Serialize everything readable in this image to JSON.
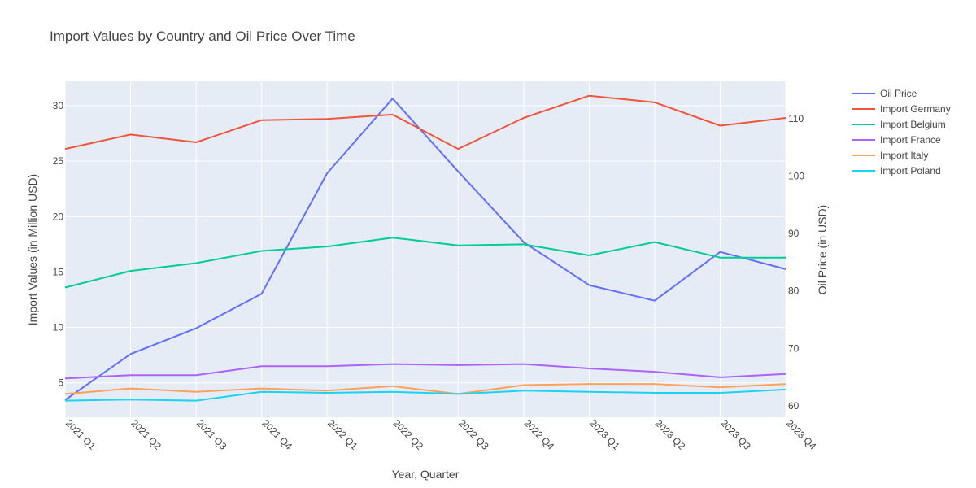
{
  "chart_data": {
    "type": "line",
    "title": "Import Values by Country and Oil Price Over Time",
    "xlabel": "Year, Quarter",
    "ylabel": "Import Values (in Million USD)",
    "y2label": "Oil Price (in USD)",
    "categories": [
      "2021 Q1",
      "2021 Q2",
      "2021 Q3",
      "2021 Q4",
      "2022 Q1",
      "2022 Q2",
      "2022 Q3",
      "2022 Q4",
      "2023 Q1",
      "2023 Q2",
      "2023 Q3",
      "2023 Q4"
    ],
    "ylim": [
      1.9,
      32.2
    ],
    "y2lim": [
      58.0,
      116.5
    ],
    "yticks": [
      5,
      10,
      15,
      20,
      25,
      30
    ],
    "y2ticks": [
      60,
      70,
      80,
      90,
      100,
      110
    ],
    "grid": true,
    "legend_position": "top-right",
    "background_color": "#e5ecf6",
    "series": [
      {
        "name": "Oil Price",
        "axis": "y2",
        "color": "#636efa",
        "values": [
          61.0,
          69.0,
          73.5,
          79.5,
          100.5,
          113.5,
          100.8,
          88.5,
          81.0,
          78.3,
          86.8,
          83.8
        ]
      },
      {
        "name": "Import Germany",
        "axis": "y",
        "color": "#ef553b",
        "values": [
          26.1,
          27.4,
          26.7,
          28.7,
          28.8,
          29.2,
          26.1,
          28.9,
          30.9,
          30.3,
          28.2,
          28.9
        ]
      },
      {
        "name": "Import Belgium",
        "axis": "y",
        "color": "#00cc96",
        "values": [
          13.6,
          15.1,
          15.8,
          16.9,
          17.3,
          18.1,
          17.4,
          17.5,
          16.5,
          17.7,
          16.3,
          16.3
        ]
      },
      {
        "name": "Import France",
        "axis": "y",
        "color": "#ab63fa",
        "values": [
          5.4,
          5.7,
          5.7,
          6.5,
          6.5,
          6.7,
          6.6,
          6.7,
          6.3,
          6.0,
          5.5,
          5.8
        ]
      },
      {
        "name": "Import Italy",
        "axis": "y",
        "color": "#ffa15a",
        "values": [
          4.0,
          4.5,
          4.2,
          4.5,
          4.3,
          4.7,
          4.0,
          4.8,
          4.9,
          4.9,
          4.6,
          4.9
        ]
      },
      {
        "name": "Import Poland",
        "axis": "y",
        "color": "#19d3f3",
        "values": [
          3.4,
          3.5,
          3.4,
          4.2,
          4.1,
          4.2,
          4.0,
          4.3,
          4.2,
          4.1,
          4.1,
          4.4
        ]
      }
    ]
  }
}
